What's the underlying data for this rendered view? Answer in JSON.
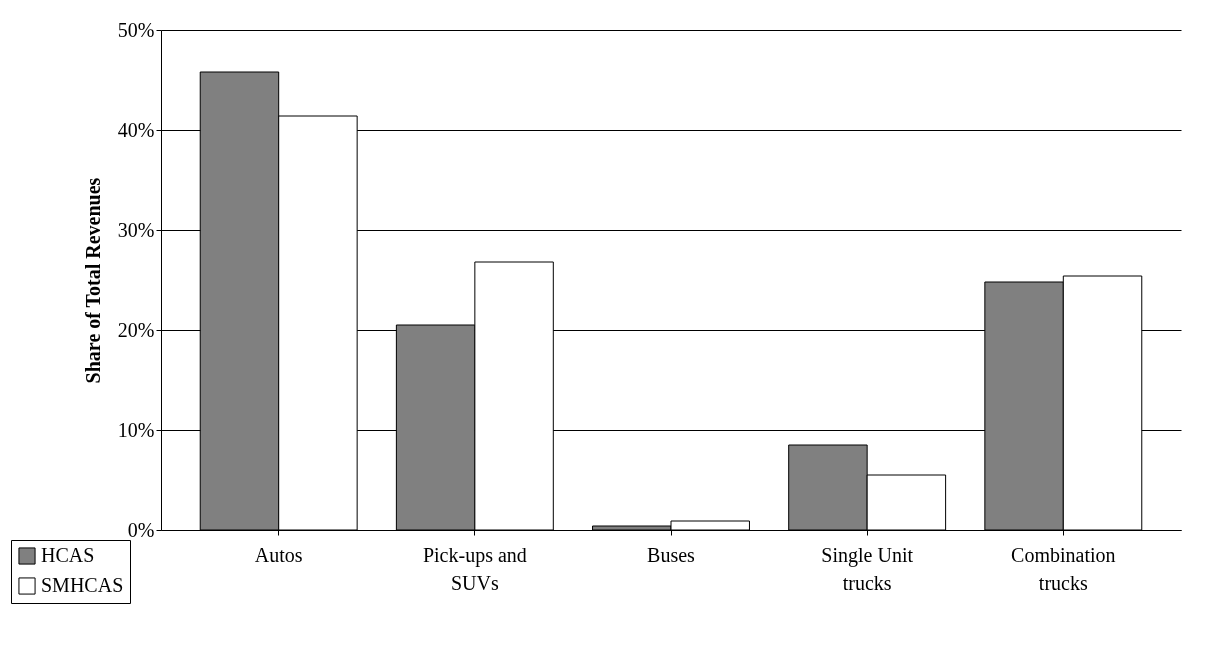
{
  "chart_data": {
    "type": "bar",
    "ylabel": "Share of Total Revenues",
    "categories": [
      "Autos",
      "Pick-ups and SUVs",
      "Buses",
      "Single Unit trucks",
      "Combination trucks"
    ],
    "series": [
      {
        "name": "HCAS",
        "color": "#808080",
        "values": [
          45.8,
          20.5,
          0.4,
          8.5,
          24.8
        ]
      },
      {
        "name": "SMHCAS",
        "color": "#ffffff",
        "values": [
          41.4,
          26.8,
          0.9,
          5.5,
          25.4
        ]
      }
    ],
    "ylim": [
      0,
      50
    ],
    "yticks": [
      {
        "value": 0,
        "label": "0%"
      },
      {
        "value": 10,
        "label": "10%"
      },
      {
        "value": 20,
        "label": "20%"
      },
      {
        "value": 30,
        "label": "30%"
      },
      {
        "value": 40,
        "label": "40%"
      },
      {
        "value": 50,
        "label": "50%"
      }
    ],
    "grid": "y",
    "legend": "bottom left"
  }
}
